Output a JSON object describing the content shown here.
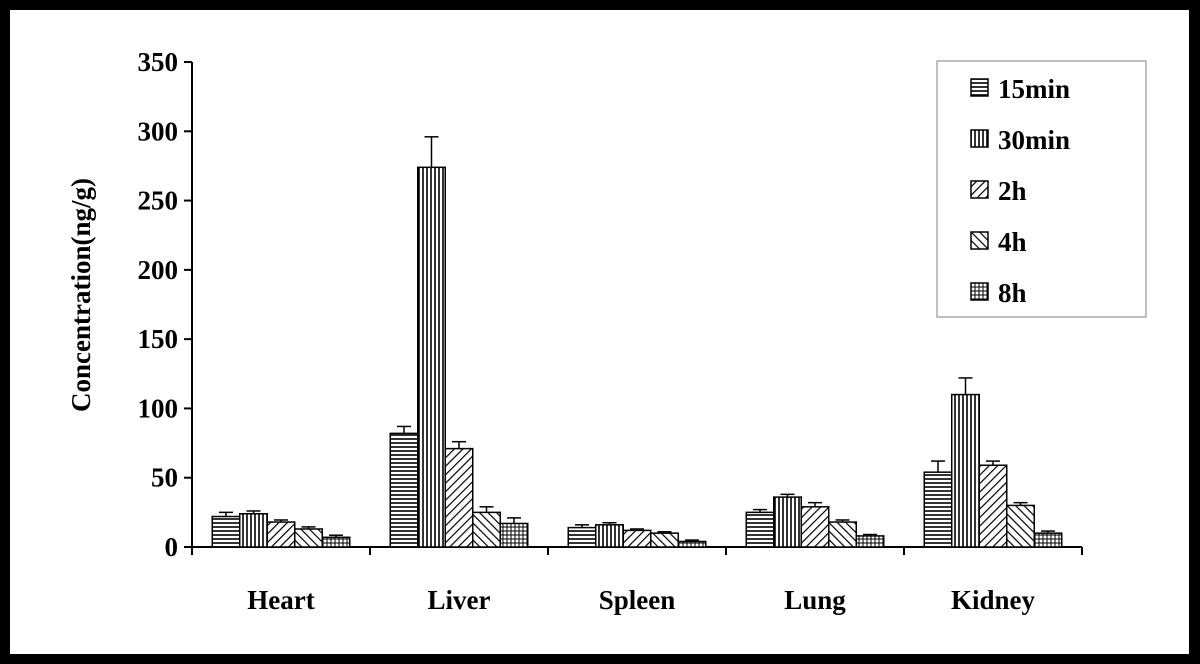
{
  "chart_data": {
    "type": "bar",
    "ylabel": "Concentration(ng/g)",
    "xlabel": "",
    "ylim": [
      0,
      350
    ],
    "yticks": [
      0,
      50,
      100,
      150,
      200,
      250,
      300,
      350
    ],
    "categories": [
      "Heart",
      "Liver",
      "Spleen",
      "Lung",
      "Kidney"
    ],
    "legend_position": "top-right",
    "grid": false,
    "series": [
      {
        "name": "15min",
        "values": [
          22,
          82,
          14,
          25,
          54
        ],
        "errors": [
          3,
          5,
          2,
          2,
          8
        ],
        "pattern": "horizontal"
      },
      {
        "name": "30min",
        "values": [
          24,
          274,
          16,
          36,
          110
        ],
        "errors": [
          2,
          22,
          1.5,
          2,
          12
        ],
        "pattern": "vertical"
      },
      {
        "name": "2h",
        "values": [
          18,
          71,
          12,
          29,
          59
        ],
        "errors": [
          1.5,
          5,
          1,
          3,
          3
        ],
        "pattern": "diag-up"
      },
      {
        "name": "4h",
        "values": [
          13,
          25,
          10,
          18,
          30
        ],
        "errors": [
          1.5,
          4,
          1,
          1.5,
          2
        ],
        "pattern": "diag-down"
      },
      {
        "name": "8h",
        "values": [
          7,
          17,
          4,
          8,
          10
        ],
        "errors": [
          1.5,
          4,
          1,
          1,
          1.5
        ],
        "pattern": "grid"
      }
    ]
  }
}
